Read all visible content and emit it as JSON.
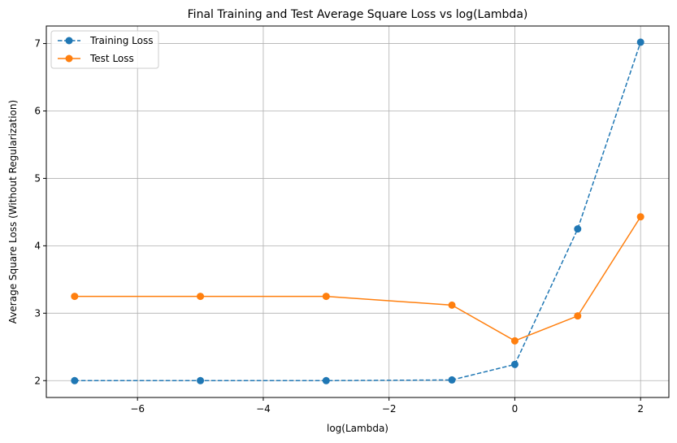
{
  "chart_data": {
    "type": "line",
    "title": "Final Training and Test Average Square Loss vs log(Lambda)",
    "xlabel": "log(Lambda)",
    "ylabel": "Average Square Loss (Without Regularization)",
    "x": [
      -7,
      -5,
      -3,
      -1,
      0,
      1,
      2
    ],
    "xlim": [
      -7.45,
      2.45
    ],
    "ylim": [
      1.75,
      7.26
    ],
    "xticks": [
      -6,
      -4,
      -2,
      0,
      2
    ],
    "xtick_labels": [
      "−6",
      "−4",
      "−2",
      "0",
      "2"
    ],
    "yticks": [
      2,
      3,
      4,
      5,
      6,
      7
    ],
    "ytick_labels": [
      "2",
      "3",
      "4",
      "5",
      "6",
      "7"
    ],
    "grid": true,
    "legend_position": "top-left",
    "series": [
      {
        "name": "Training Loss",
        "values": [
          2.0,
          2.0,
          2.0,
          2.01,
          2.24,
          4.25,
          7.02
        ],
        "color": "#1f77b4",
        "linestyle": "dashed",
        "marker": "circle"
      },
      {
        "name": "Test Loss",
        "values": [
          3.25,
          3.25,
          3.25,
          3.12,
          2.59,
          2.96,
          4.43
        ],
        "color": "#ff7f0e",
        "linestyle": "solid",
        "marker": "circle"
      }
    ]
  }
}
